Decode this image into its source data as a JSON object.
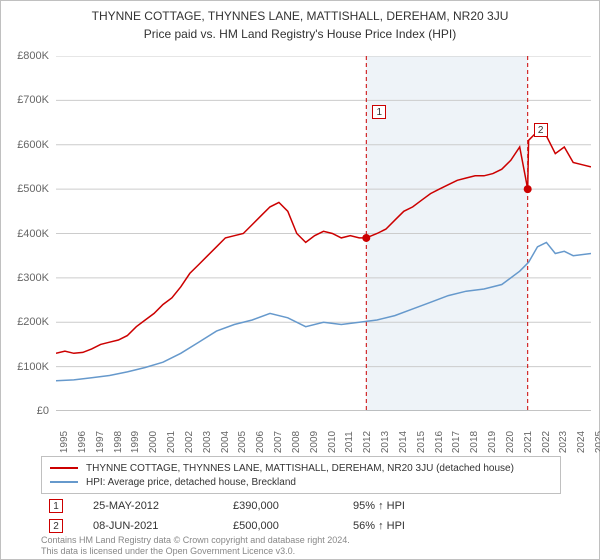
{
  "title": {
    "line1": "THYNNE COTTAGE, THYNNES LANE, MATTISHALL, DEREHAM, NR20 3JU",
    "line2": "Price paid vs. HM Land Registry's House Price Index (HPI)"
  },
  "chart": {
    "type": "line",
    "background_color": "#ffffff",
    "grid_color": "#cccccc",
    "ylim": [
      0,
      800000
    ],
    "ytick_step": 100000,
    "y_prefix": "£",
    "y_labels": [
      "£0",
      "£100K",
      "£200K",
      "£300K",
      "£400K",
      "£500K",
      "£600K",
      "£700K",
      "£800K"
    ],
    "x_start_year": 1995,
    "x_end_year": 2025,
    "x_labels": [
      "1995",
      "1996",
      "1997",
      "1998",
      "1999",
      "2000",
      "2001",
      "2002",
      "2003",
      "2004",
      "2005",
      "2006",
      "2007",
      "2008",
      "2009",
      "2010",
      "2011",
      "2012",
      "2013",
      "2014",
      "2015",
      "2016",
      "2017",
      "2018",
      "2019",
      "2020",
      "2021",
      "2022",
      "2023",
      "2024",
      "2025"
    ],
    "title_fontsize": 12,
    "label_fontsize": 11,
    "highlight_band": {
      "x_start_year": 2012.4,
      "x_end_year": 2021.45,
      "color": "#eef3f8"
    },
    "vlines": [
      {
        "year": 2012.4,
        "color": "#cc0000",
        "dash": "4,3",
        "marker_label": "1",
        "marker_y": 110000
      },
      {
        "year": 2021.45,
        "color": "#cc0000",
        "dash": "4,3",
        "marker_label": "2",
        "marker_y": 150000
      }
    ],
    "sale_dots": [
      {
        "year": 2012.4,
        "value": 390000,
        "color": "#cc0000"
      },
      {
        "year": 2021.45,
        "value": 500000,
        "color": "#cc0000"
      }
    ],
    "series": [
      {
        "name": "property",
        "label": "THYNNE COTTAGE, THYNNES LANE, MATTISHALL, DEREHAM, NR20 3JU (detached house)",
        "color": "#cc0000",
        "line_width": 1.5,
        "points": [
          [
            1995,
            130000
          ],
          [
            1995.5,
            135000
          ],
          [
            1996,
            130000
          ],
          [
            1996.5,
            132000
          ],
          [
            1997,
            140000
          ],
          [
            1997.5,
            150000
          ],
          [
            1998,
            155000
          ],
          [
            1998.5,
            160000
          ],
          [
            1999,
            170000
          ],
          [
            1999.5,
            190000
          ],
          [
            2000,
            205000
          ],
          [
            2000.5,
            220000
          ],
          [
            2001,
            240000
          ],
          [
            2001.5,
            255000
          ],
          [
            2002,
            280000
          ],
          [
            2002.5,
            310000
          ],
          [
            2003,
            330000
          ],
          [
            2003.5,
            350000
          ],
          [
            2004,
            370000
          ],
          [
            2004.5,
            390000
          ],
          [
            2005,
            395000
          ],
          [
            2005.5,
            400000
          ],
          [
            2006,
            420000
          ],
          [
            2006.5,
            440000
          ],
          [
            2007,
            460000
          ],
          [
            2007.5,
            470000
          ],
          [
            2008,
            450000
          ],
          [
            2008.5,
            400000
          ],
          [
            2009,
            380000
          ],
          [
            2009.5,
            395000
          ],
          [
            2010,
            405000
          ],
          [
            2010.5,
            400000
          ],
          [
            2011,
            390000
          ],
          [
            2011.5,
            395000
          ],
          [
            2012,
            390000
          ],
          [
            2012.4,
            390000
          ],
          [
            2013,
            400000
          ],
          [
            2013.5,
            410000
          ],
          [
            2014,
            430000
          ],
          [
            2014.5,
            450000
          ],
          [
            2015,
            460000
          ],
          [
            2015.5,
            475000
          ],
          [
            2016,
            490000
          ],
          [
            2016.5,
            500000
          ],
          [
            2017,
            510000
          ],
          [
            2017.5,
            520000
          ],
          [
            2018,
            525000
          ],
          [
            2018.5,
            530000
          ],
          [
            2019,
            530000
          ],
          [
            2019.5,
            535000
          ],
          [
            2020,
            545000
          ],
          [
            2020.5,
            565000
          ],
          [
            2021,
            595000
          ],
          [
            2021.45,
            500000
          ],
          [
            2021.5,
            610000
          ],
          [
            2022,
            630000
          ],
          [
            2022.5,
            620000
          ],
          [
            2023,
            580000
          ],
          [
            2023.5,
            595000
          ],
          [
            2024,
            560000
          ],
          [
            2024.5,
            555000
          ],
          [
            2025,
            550000
          ]
        ]
      },
      {
        "name": "hpi",
        "label": "HPI: Average price, detached house, Breckland",
        "color": "#6699cc",
        "line_width": 1.5,
        "points": [
          [
            1995,
            68000
          ],
          [
            1996,
            70000
          ],
          [
            1997,
            75000
          ],
          [
            1998,
            80000
          ],
          [
            1999,
            88000
          ],
          [
            2000,
            98000
          ],
          [
            2001,
            110000
          ],
          [
            2002,
            130000
          ],
          [
            2003,
            155000
          ],
          [
            2004,
            180000
          ],
          [
            2005,
            195000
          ],
          [
            2006,
            205000
          ],
          [
            2007,
            220000
          ],
          [
            2008,
            210000
          ],
          [
            2009,
            190000
          ],
          [
            2010,
            200000
          ],
          [
            2011,
            195000
          ],
          [
            2012,
            200000
          ],
          [
            2013,
            205000
          ],
          [
            2014,
            215000
          ],
          [
            2015,
            230000
          ],
          [
            2016,
            245000
          ],
          [
            2017,
            260000
          ],
          [
            2018,
            270000
          ],
          [
            2019,
            275000
          ],
          [
            2020,
            285000
          ],
          [
            2021,
            315000
          ],
          [
            2021.5,
            335000
          ],
          [
            2022,
            370000
          ],
          [
            2022.5,
            380000
          ],
          [
            2023,
            355000
          ],
          [
            2023.5,
            360000
          ],
          [
            2024,
            350000
          ],
          [
            2025,
            355000
          ]
        ]
      }
    ]
  },
  "legend": {
    "items": [
      {
        "color": "red",
        "text": "THYNNE COTTAGE, THYNNES LANE, MATTISHALL, DEREHAM, NR20 3JU (detached house)"
      },
      {
        "color": "blue",
        "text": "HPI: Average price, detached house, Breckland"
      }
    ]
  },
  "sales": [
    {
      "marker": "1",
      "date": "25-MAY-2012",
      "price": "£390,000",
      "pct": "95% ↑ HPI"
    },
    {
      "marker": "2",
      "date": "08-JUN-2021",
      "price": "£500,000",
      "pct": "56% ↑ HPI"
    }
  ],
  "footer": {
    "line1": "Contains HM Land Registry data © Crown copyright and database right 2024.",
    "line2": "This data is licensed under the Open Government Licence v3.0."
  }
}
